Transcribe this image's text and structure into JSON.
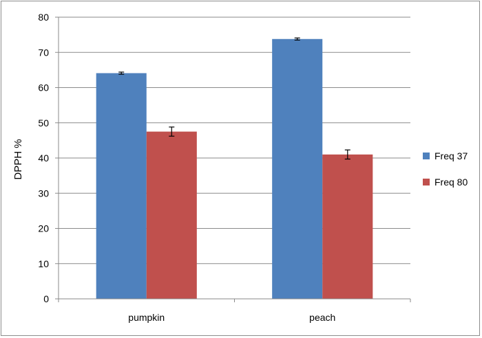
{
  "chart_data": {
    "type": "bar",
    "categories": [
      "pumpkin",
      "peach"
    ],
    "series": [
      {
        "name": "Freq 37",
        "color": "#4F81BD",
        "values": [
          64.1,
          73.8
        ],
        "errors": [
          0.3,
          0.3
        ]
      },
      {
        "name": "Freq 80",
        "color": "#C0504D",
        "values": [
          47.5,
          41.0
        ],
        "errors": [
          1.3,
          1.3
        ]
      }
    ],
    "ylabel": "DPPH %",
    "xlabel": "",
    "ylim": [
      0,
      80
    ],
    "yticks": [
      0,
      10,
      20,
      30,
      40,
      50,
      60,
      70,
      80
    ],
    "grid": true,
    "legend": "right"
  }
}
